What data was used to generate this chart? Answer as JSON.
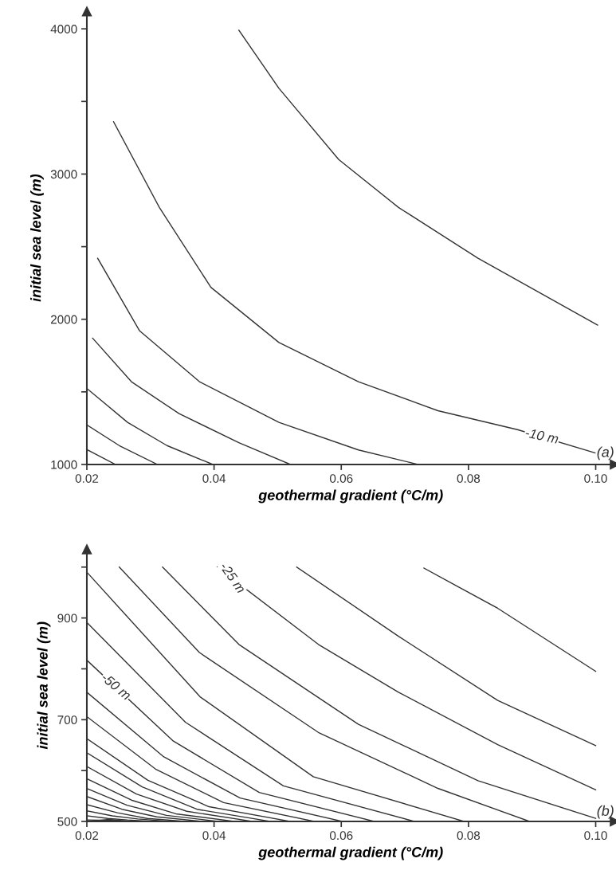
{
  "chart_data": [
    {
      "type": "line",
      "xlabel": "geothermal gradient (°C/m)",
      "ylabel": "initial sea level (m)",
      "xlim": [
        0.02,
        0.103
      ],
      "xticks": [
        {
          "value": 0.02,
          "label": "0.02"
        },
        {
          "value": 0.04,
          "label": "0.04"
        },
        {
          "value": 0.06,
          "label": "0.06"
        },
        {
          "value": 0.08,
          "label": "0.08"
        },
        {
          "value": 0.1,
          "label": "0.10"
        }
      ],
      "ylim": [
        1000,
        4120
      ],
      "yticks": [
        1000,
        {
          "value": 1500,
          "label": null
        },
        2000,
        {
          "value": 2500,
          "label": null
        },
        3000,
        {
          "value": 3500,
          "label": null
        },
        4000
      ],
      "series": [
        {
          "color": "#333333",
          "x": [
            0.0439,
            0.0502,
            0.0596,
            0.069,
            0.0815,
            0.1003
          ],
          "values": [
            3990,
            3590,
            3100,
            2770,
            2420,
            1960
          ]
        },
        {
          "color": "#333333",
          "x": [
            0.0242,
            0.0314,
            0.0395,
            0.0502,
            0.0627,
            0.0752,
            0.0877,
            0.0999
          ],
          "values": [
            3360,
            2770,
            2220,
            1840,
            1570,
            1370,
            1240,
            1080
          ]
        },
        {
          "color": "#333333",
          "x": [
            0.0217,
            0.0283,
            0.0377,
            0.0502,
            0.0627,
            0.0721
          ],
          "values": [
            2420,
            1920,
            1570,
            1290,
            1100,
            1000
          ]
        },
        {
          "color": "#333333",
          "x": [
            0.0209,
            0.027,
            0.0345,
            0.0439,
            0.052
          ],
          "values": [
            1870,
            1570,
            1350,
            1150,
            1000
          ]
        },
        {
          "color": "#333333",
          "x": [
            0.0201,
            0.0264,
            0.0326,
            0.0398
          ],
          "values": [
            1520,
            1290,
            1130,
            1000
          ]
        },
        {
          "color": "#333333",
          "x": [
            0.0201,
            0.0251,
            0.0311
          ],
          "values": [
            1270,
            1130,
            1000
          ]
        },
        {
          "color": "#333333",
          "x": [
            0.0201,
            0.0245
          ],
          "values": [
            1100,
            1000
          ]
        }
      ],
      "annotations": [
        {
          "text": "-10 m",
          "x": 0.0915,
          "y": 1190
        },
        "(a)"
      ]
    },
    {
      "type": "line",
      "xlabel": "geothermal gradient (°C/m)",
      "ylabel": "initial sea level (m)",
      "xlim": [
        0.02,
        0.103
      ],
      "xticks": [
        {
          "value": 0.02,
          "label": "0.02"
        },
        {
          "value": 0.04,
          "label": "0.04"
        },
        {
          "value": 0.06,
          "label": "0.06"
        },
        {
          "value": 0.08,
          "label": "0.08"
        },
        {
          "value": 0.1,
          "label": "0.10"
        }
      ],
      "ylim": [
        500,
        1035
      ],
      "yticks": [
        500,
        {
          "value": 600,
          "label": null
        },
        700,
        {
          "value": 800,
          "label": null
        },
        900,
        {
          "value": 1000,
          "label": null
        }
      ],
      "series": [
        {
          "color": "#333333",
          "x": [
            0.073,
            0.0783,
            0.0846,
            0.1
          ],
          "values": [
            998,
            962,
            919,
            795
          ]
        },
        {
          "color": "#333333",
          "x": [
            0.053,
            0.069,
            0.0846,
            0.1
          ],
          "values": [
            1000,
            864,
            738,
            649
          ]
        },
        {
          "color": "#333333",
          "x": [
            0.0405,
            0.0564,
            0.069,
            0.0846,
            0.1
          ],
          "values": [
            1000,
            848,
            754,
            651,
            562
          ]
        },
        {
          "color": "#333333",
          "x": [
            0.0319,
            0.0439,
            0.0627,
            0.0815,
            0.1
          ],
          "values": [
            1000,
            848,
            691,
            580,
            506
          ]
        },
        {
          "color": "#333333",
          "x": [
            0.0251,
            0.0377,
            0.0564,
            0.0752,
            0.0896
          ],
          "values": [
            1000,
            832,
            675,
            565,
            500
          ]
        },
        {
          "color": "#333333",
          "x": [
            0.02,
            0.0378,
            0.0556,
            0.0793
          ],
          "values": [
            990,
            745,
            588,
            500
          ]
        },
        {
          "color": "#333333",
          "x": [
            0.02,
            0.0355,
            0.0509,
            0.0715
          ],
          "values": [
            891,
            695,
            570,
            500
          ]
        },
        {
          "color": "#333333",
          "x": [
            0.02,
            0.0336,
            0.0471,
            0.0652
          ],
          "values": [
            817,
            658,
            557,
            500
          ]
        },
        {
          "color": "#333333",
          "x": [
            0.02,
            0.0321,
            0.0441,
            0.0602
          ],
          "values": [
            754,
            627,
            546,
            500
          ]
        },
        {
          "color": "#333333",
          "x": [
            0.02,
            0.0308,
            0.0415,
            0.0558
          ],
          "values": [
            706,
            603,
            537,
            500
          ]
        },
        {
          "color": "#333333",
          "x": [
            0.02,
            0.0296,
            0.0392,
            0.052
          ],
          "values": [
            663,
            581,
            529,
            500
          ]
        },
        {
          "color": "#333333",
          "x": [
            0.02,
            0.0287,
            0.0373,
            0.0489
          ],
          "values": [
            635,
            568,
            524,
            500
          ]
        },
        {
          "color": "#333333",
          "x": [
            0.02,
            0.0278,
            0.0357,
            0.0461
          ],
          "values": [
            608,
            554,
            520,
            500
          ]
        },
        {
          "color": "#333333",
          "x": [
            0.02,
            0.027,
            0.034,
            0.0433
          ],
          "values": [
            584,
            542,
            515,
            500
          ]
        },
        {
          "color": "#333333",
          "x": [
            0.02,
            0.0263,
            0.0325,
            0.0408
          ],
          "values": [
            565,
            532,
            512,
            500
          ]
        },
        {
          "color": "#333333",
          "x": [
            0.02,
            0.0255,
            0.031,
            0.0383
          ],
          "values": [
            549,
            524,
            509,
            500
          ]
        },
        {
          "color": "#333333",
          "x": [
            0.02,
            0.0248,
            0.0295,
            0.0358
          ],
          "values": [
            533,
            517,
            506,
            500
          ]
        },
        {
          "color": "#333333",
          "x": [
            0.02,
            0.024,
            0.028,
            0.0333
          ],
          "values": [
            521,
            511,
            505,
            500
          ]
        },
        {
          "color": "#333333",
          "x": [
            0.02,
            0.0233,
            0.0264,
            0.0308
          ],
          "values": [
            511,
            506,
            503,
            500
          ]
        },
        {
          "color": "#333333",
          "x": [
            0.02,
            0.0238,
            0.0276
          ],
          "values": [
            503,
            502,
            500
          ]
        },
        {
          "color": "#333333",
          "x": [
            0.0205,
            0.0235,
            0.027
          ],
          "values": [
            500,
            504,
            500
          ]
        }
      ],
      "annotations": [
        {
          "text": "-25 m",
          "x": 0.0428,
          "y": 978
        },
        {
          "text": "-50 m",
          "x": 0.0245,
          "y": 764
        },
        "(b)"
      ]
    }
  ]
}
